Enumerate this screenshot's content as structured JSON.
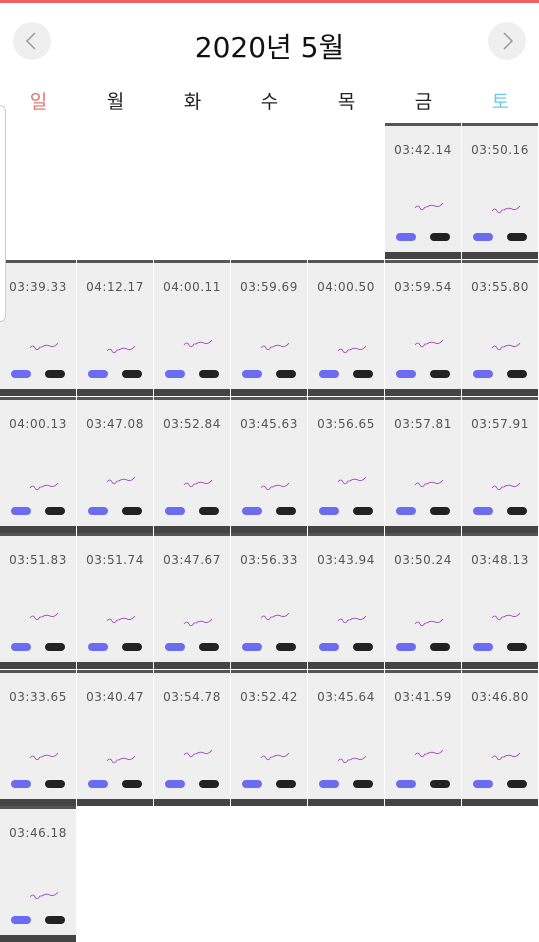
{
  "header": {
    "title": "2020년 5월"
  },
  "weekdays": [
    "일",
    "월",
    "화",
    "수",
    "목",
    "금",
    "토"
  ],
  "weeks": [
    [
      "03:42.14",
      "03:50.16"
    ],
    [
      "03:39.33",
      "04:12.17",
      "04:00.11",
      "03:59.69",
      "04:00.50",
      "03:59.54",
      "03:55.80"
    ],
    [
      "04:00.13",
      "03:47.08",
      "03:52.84",
      "03:45.63",
      "03:56.65",
      "03:57.81",
      "03:57.91"
    ],
    [
      "03:51.83",
      "03:51.74",
      "03:47.67",
      "03:56.33",
      "03:43.94",
      "03:50.24",
      "03:48.13"
    ],
    [
      "03:33.65",
      "03:40.47",
      "03:54.78",
      "03:52.42",
      "03:45.64",
      "03:41.59",
      "03:46.80"
    ],
    [
      "03:46.18"
    ]
  ]
}
